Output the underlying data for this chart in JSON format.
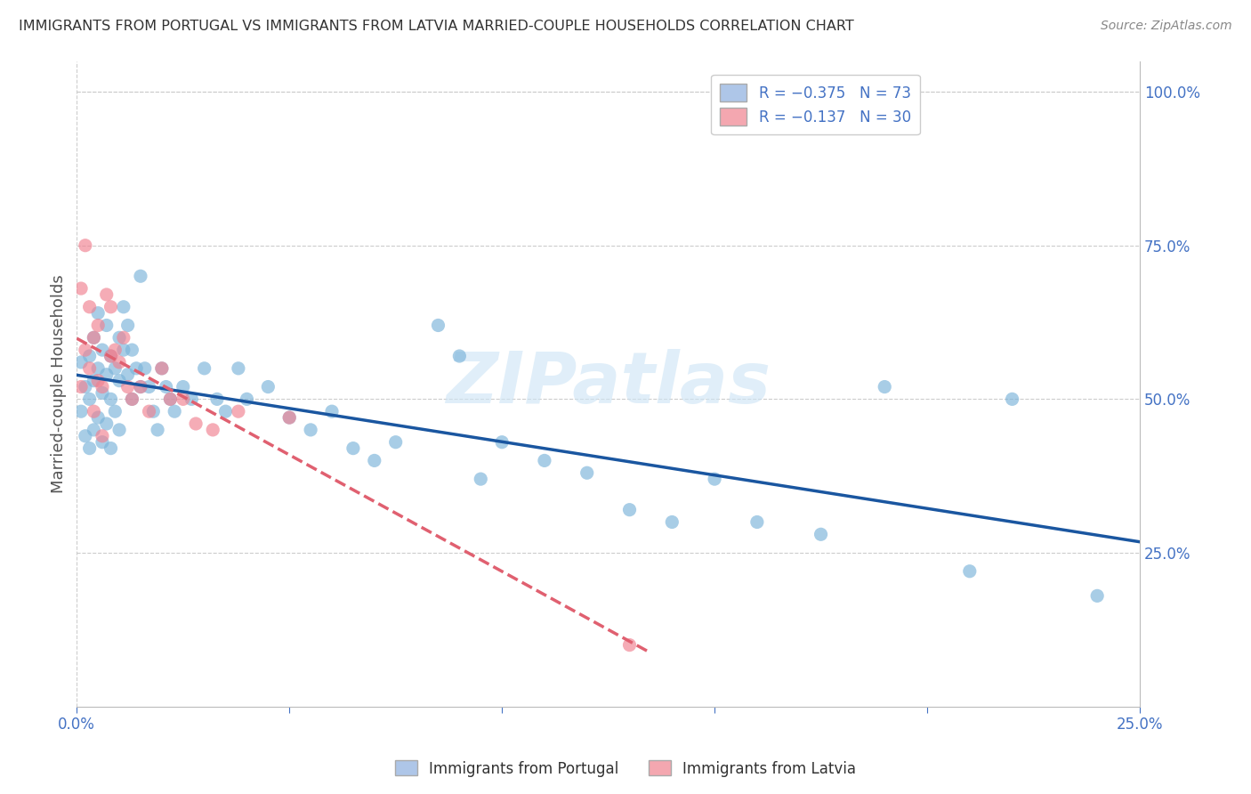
{
  "title": "IMMIGRANTS FROM PORTUGAL VS IMMIGRANTS FROM LATVIA MARRIED-COUPLE HOUSEHOLDS CORRELATION CHART",
  "source": "Source: ZipAtlas.com",
  "ylabel": "Married-couple Households",
  "xlim": [
    0.0,
    0.25
  ],
  "ylim": [
    0.0,
    1.05
  ],
  "x_tick_positions": [
    0.0,
    0.05,
    0.1,
    0.15,
    0.2,
    0.25
  ],
  "x_tick_labels": [
    "0.0%",
    "",
    "",
    "",
    "",
    "25.0%"
  ],
  "y_tick_positions": [
    0.25,
    0.5,
    0.75,
    1.0
  ],
  "y_tick_labels": [
    "25.0%",
    "50.0%",
    "75.0%",
    "100.0%"
  ],
  "legend_color_1": "#aec6e8",
  "legend_color_2": "#f4a7b0",
  "scatter_color_1": "#7ab3d9",
  "scatter_color_2": "#f08090",
  "line_color_1": "#1a56a0",
  "line_color_2": "#e06070",
  "watermark": "ZIPatlas",
  "background_color": "#ffffff",
  "grid_color": "#cccccc",
  "title_color": "#333333",
  "portugal_x": [
    0.001,
    0.001,
    0.002,
    0.002,
    0.003,
    0.003,
    0.003,
    0.004,
    0.004,
    0.004,
    0.005,
    0.005,
    0.005,
    0.006,
    0.006,
    0.006,
    0.007,
    0.007,
    0.007,
    0.008,
    0.008,
    0.008,
    0.009,
    0.009,
    0.01,
    0.01,
    0.01,
    0.011,
    0.011,
    0.012,
    0.012,
    0.013,
    0.013,
    0.014,
    0.015,
    0.015,
    0.016,
    0.017,
    0.018,
    0.019,
    0.02,
    0.021,
    0.022,
    0.023,
    0.025,
    0.027,
    0.03,
    0.033,
    0.035,
    0.038,
    0.04,
    0.045,
    0.05,
    0.055,
    0.06,
    0.065,
    0.07,
    0.075,
    0.085,
    0.09,
    0.095,
    0.1,
    0.11,
    0.12,
    0.13,
    0.14,
    0.15,
    0.16,
    0.175,
    0.19,
    0.21,
    0.22,
    0.24
  ],
  "portugal_y": [
    0.56,
    0.48,
    0.52,
    0.44,
    0.57,
    0.5,
    0.42,
    0.6,
    0.53,
    0.45,
    0.64,
    0.55,
    0.47,
    0.58,
    0.51,
    0.43,
    0.62,
    0.54,
    0.46,
    0.57,
    0.5,
    0.42,
    0.55,
    0.48,
    0.6,
    0.53,
    0.45,
    0.65,
    0.58,
    0.62,
    0.54,
    0.58,
    0.5,
    0.55,
    0.7,
    0.52,
    0.55,
    0.52,
    0.48,
    0.45,
    0.55,
    0.52,
    0.5,
    0.48,
    0.52,
    0.5,
    0.55,
    0.5,
    0.48,
    0.55,
    0.5,
    0.52,
    0.47,
    0.45,
    0.48,
    0.42,
    0.4,
    0.43,
    0.62,
    0.57,
    0.37,
    0.43,
    0.4,
    0.38,
    0.32,
    0.3,
    0.37,
    0.3,
    0.28,
    0.52,
    0.22,
    0.5,
    0.18
  ],
  "latvia_x": [
    0.001,
    0.001,
    0.002,
    0.002,
    0.003,
    0.003,
    0.004,
    0.004,
    0.005,
    0.005,
    0.006,
    0.006,
    0.007,
    0.008,
    0.008,
    0.009,
    0.01,
    0.011,
    0.012,
    0.013,
    0.015,
    0.017,
    0.02,
    0.022,
    0.025,
    0.028,
    0.032,
    0.038,
    0.05,
    0.13
  ],
  "latvia_y": [
    0.68,
    0.52,
    0.75,
    0.58,
    0.65,
    0.55,
    0.6,
    0.48,
    0.62,
    0.53,
    0.52,
    0.44,
    0.67,
    0.65,
    0.57,
    0.58,
    0.56,
    0.6,
    0.52,
    0.5,
    0.52,
    0.48,
    0.55,
    0.5,
    0.5,
    0.46,
    0.45,
    0.48,
    0.47,
    0.1
  ]
}
